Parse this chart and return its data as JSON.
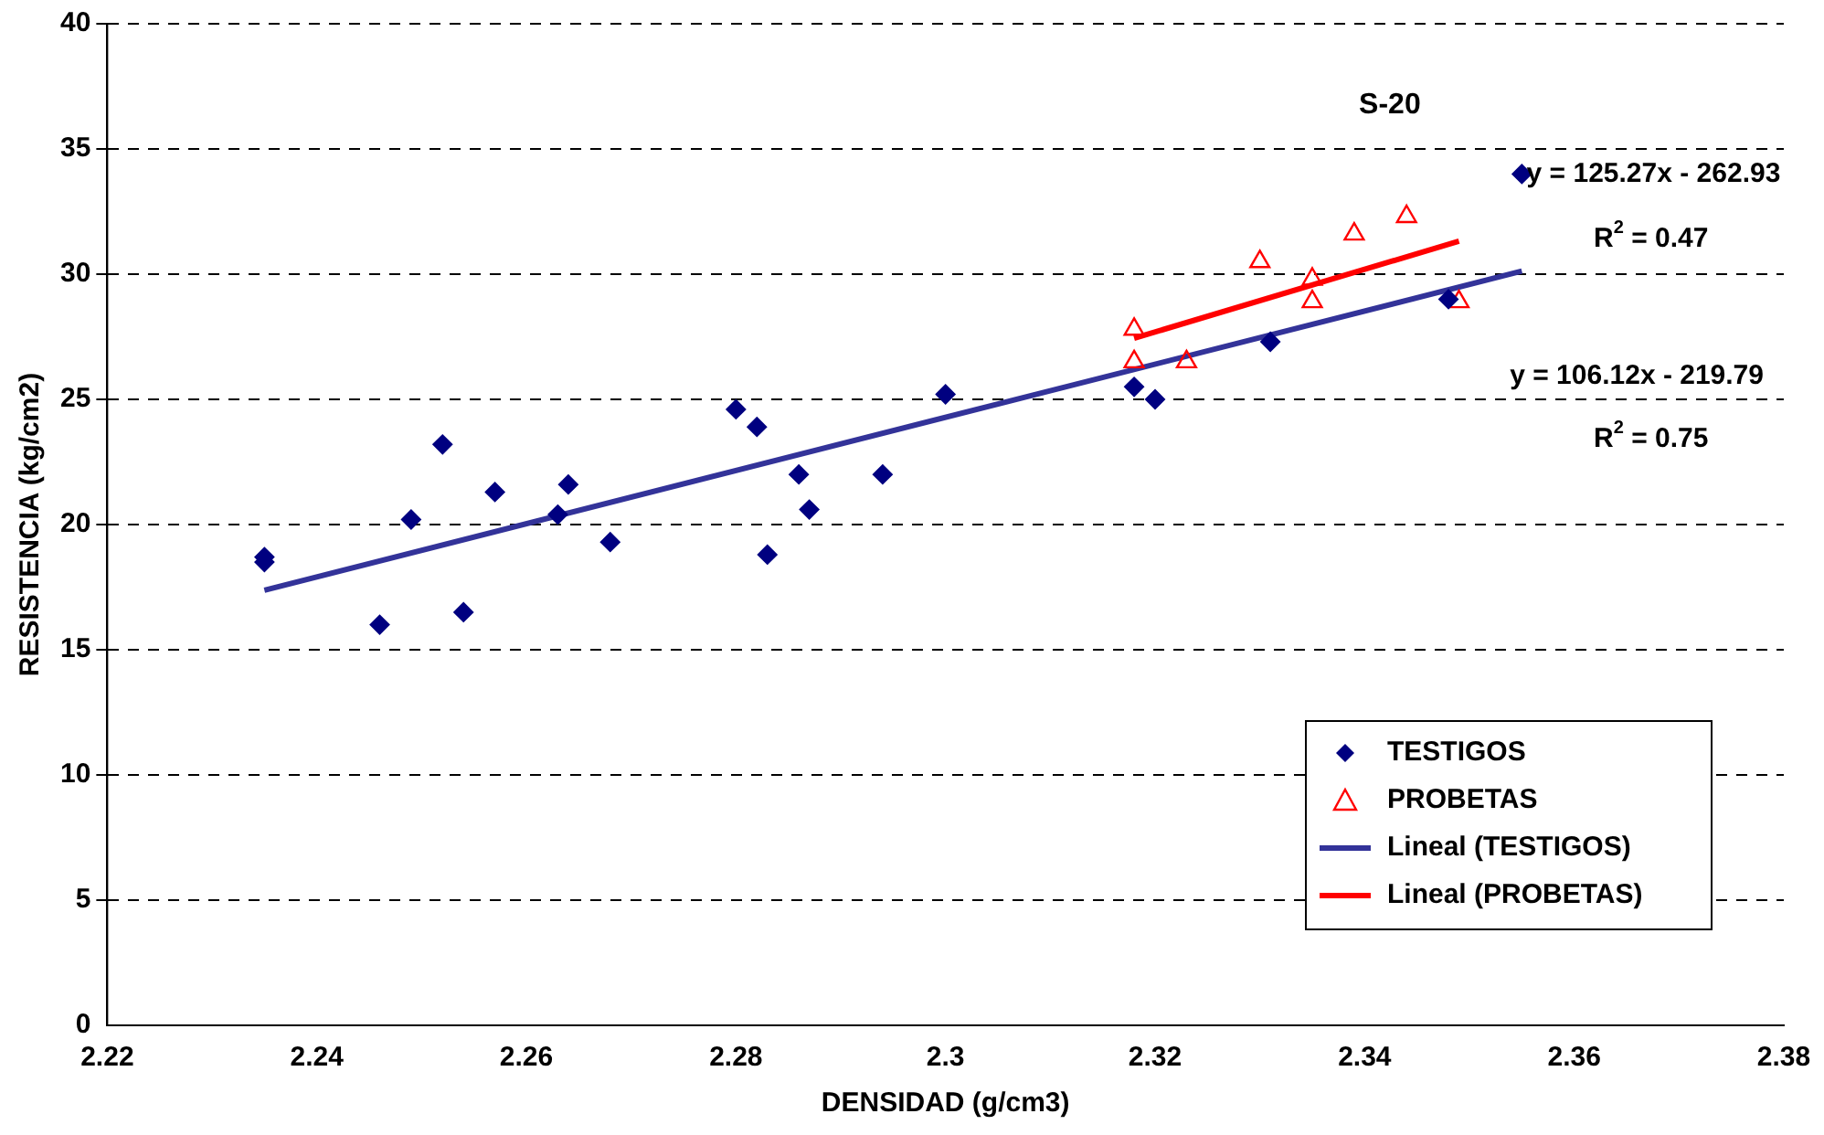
{
  "chart_data": {
    "type": "scatter",
    "title": "S-20",
    "xlabel": "DENSIDAD (g/cm3)",
    "ylabel": "RESISTENCIA (kg/cm2)",
    "xlim": [
      2.22,
      2.38
    ],
    "xticks": [
      2.22,
      2.24,
      2.26,
      2.28,
      2.3,
      2.32,
      2.34,
      2.36,
      2.38
    ],
    "ylim": [
      0,
      40
    ],
    "yticks": [
      0,
      5,
      10,
      15,
      20,
      25,
      30,
      35,
      40
    ],
    "grid": "y",
    "legend": "bottom right",
    "annotations": [
      "y = 125.27x - 262.93",
      "R$^{2}$ = 0.47",
      "y = 106.12x - 219.79",
      "R$^{2}$ = 0.75"
    ],
    "series": [
      {
        "name": "TESTIGOS",
        "marker": "diamond",
        "color": "#000080",
        "x": [
          2.235,
          2.235,
          2.246,
          2.249,
          2.252,
          2.254,
          2.257,
          2.263,
          2.264,
          2.268,
          2.28,
          2.282,
          2.283,
          2.286,
          2.287,
          2.294,
          2.3,
          2.318,
          2.32,
          2.331,
          2.348,
          2.355
        ],
        "values": [
          18.7,
          18.5,
          16.0,
          20.2,
          23.2,
          16.5,
          21.3,
          20.4,
          21.6,
          19.3,
          24.6,
          23.9,
          18.8,
          22.0,
          20.6,
          22.0,
          25.2,
          25.5,
          25.0,
          27.3,
          29.0,
          34.0
        ]
      },
      {
        "name": "PROBETAS",
        "marker": "triangle",
        "color": "#ff0000",
        "x": [
          2.318,
          2.318,
          2.323,
          2.33,
          2.335,
          2.335,
          2.339,
          2.344,
          2.349
        ],
        "values": [
          27.8,
          26.5,
          26.5,
          30.5,
          29.8,
          28.9,
          31.6,
          32.3,
          28.9
        ]
      },
      {
        "name": "Lineal (TESTIGOS)",
        "type": "line",
        "marker": "none",
        "color": "#333399",
        "x": [
          2.235,
          2.355
        ],
        "values": [
          17.38,
          30.12
        ]
      },
      {
        "name": "Lineal (PROBETAS)",
        "type": "line",
        "marker": "none",
        "color": "#ff0000",
        "x": [
          2.318,
          2.349
        ],
        "values": [
          27.44,
          31.32
        ]
      }
    ]
  }
}
